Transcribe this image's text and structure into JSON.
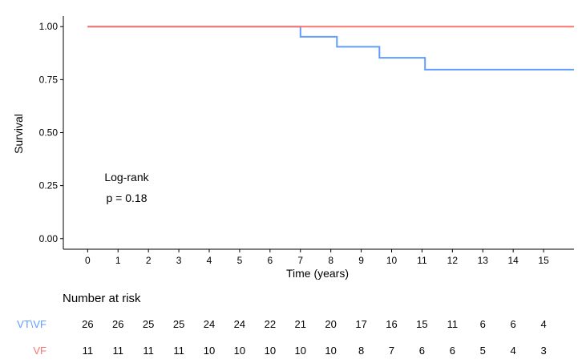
{
  "chart_data": {
    "type": "line",
    "title": "",
    "xlabel": "Time (years)",
    "ylabel": "Survival",
    "xlim": [
      -0.8,
      16.0
    ],
    "ylim": [
      -0.05,
      1.05
    ],
    "x_ticks": [
      0,
      1,
      2,
      3,
      4,
      5,
      6,
      7,
      8,
      9,
      10,
      11,
      12,
      13,
      14,
      15
    ],
    "y_ticks": [
      "0.00",
      "0.25",
      "0.50",
      "0.75",
      "1.00"
    ],
    "grid": false,
    "series": [
      {
        "name": "VT\\VF",
        "color": "#619CFF",
        "step_points": [
          [
            0,
            1.0
          ],
          [
            7.0,
            1.0
          ],
          [
            7.0,
            0.952
          ],
          [
            8.2,
            0.952
          ],
          [
            8.2,
            0.905
          ],
          [
            9.6,
            0.905
          ],
          [
            9.6,
            0.853
          ],
          [
            11.1,
            0.853
          ],
          [
            11.1,
            0.797
          ],
          [
            16.0,
            0.797
          ]
        ]
      },
      {
        "name": "VF",
        "color": "#F8766D",
        "step_points": [
          [
            0,
            1.0
          ],
          [
            16.0,
            1.0
          ]
        ]
      }
    ],
    "annotation": {
      "line1": "Log-rank",
      "line2": "p = 0.18"
    },
    "risk_table": {
      "title": "Number at risk",
      "times": [
        0,
        1,
        2,
        3,
        4,
        5,
        6,
        7,
        8,
        9,
        10,
        11,
        12,
        13,
        14,
        15
      ],
      "rows": [
        {
          "name": "VT\\VF",
          "color": "#619CFF",
          "values": [
            26,
            26,
            25,
            25,
            24,
            24,
            22,
            21,
            20,
            17,
            16,
            15,
            11,
            6,
            6,
            4
          ]
        },
        {
          "name": "VF",
          "color": "#F8766D",
          "values": [
            11,
            11,
            11,
            11,
            10,
            10,
            10,
            10,
            10,
            8,
            7,
            6,
            6,
            5,
            4,
            3
          ]
        }
      ]
    }
  }
}
